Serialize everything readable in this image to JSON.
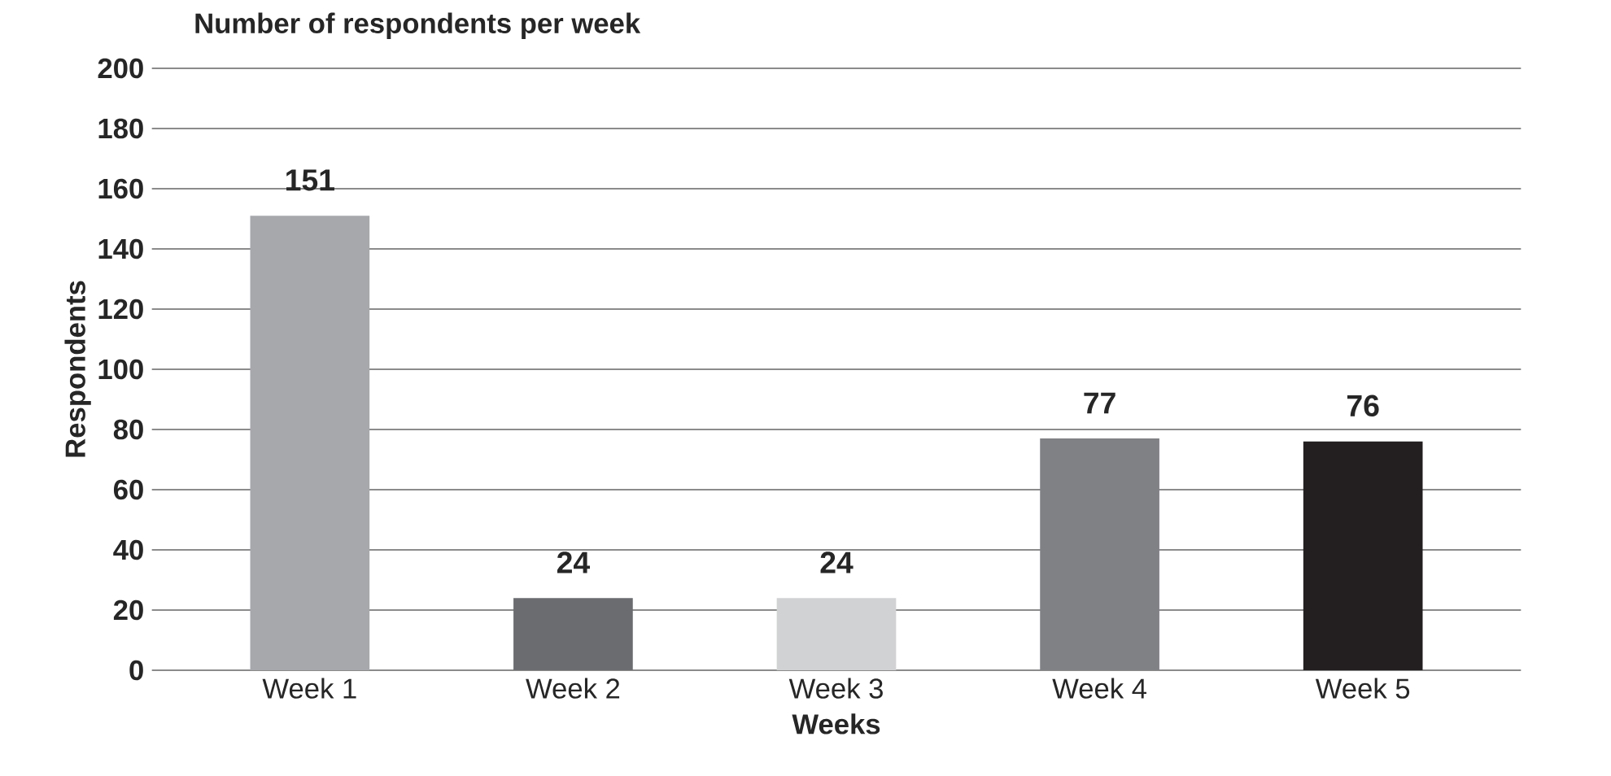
{
  "chart_data": {
    "type": "bar",
    "title": "Number of respondents per week",
    "xlabel": "Weeks",
    "ylabel": "Respondents",
    "categories": [
      "Week 1",
      "Week 2",
      "Week 3",
      "Week 4",
      "Week 5"
    ],
    "values": [
      151,
      24,
      24,
      77,
      76
    ],
    "colors": [
      "#a7a8ac",
      "#6b6c70",
      "#d1d2d4",
      "#808185",
      "#231f20"
    ],
    "ylim": [
      0,
      200
    ],
    "yticks": [
      0,
      20,
      40,
      60,
      80,
      100,
      120,
      140,
      160,
      180,
      200
    ],
    "grid": "y",
    "data_labels": true
  }
}
